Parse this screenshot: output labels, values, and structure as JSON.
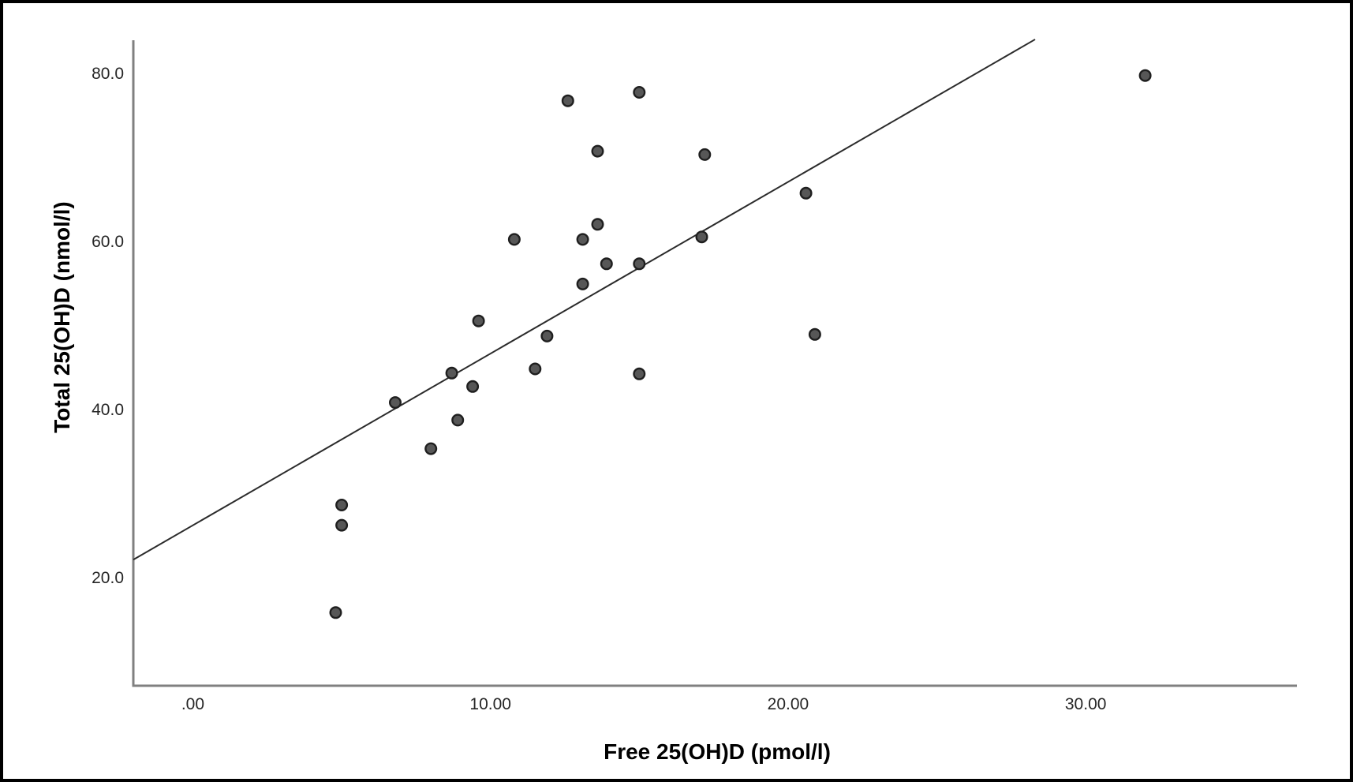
{
  "figure": {
    "background_color": "#ffffff",
    "border_color": "#000000"
  },
  "chart_data": {
    "type": "scatter",
    "title": "",
    "xlabel": "Free 25(OH)D (pmol/l)",
    "ylabel": "Total 25(OH)D (nmol/l)",
    "xlim": [
      -2.0,
      37.1
    ],
    "ylim": [
      7.2,
      84.0
    ],
    "grid": false,
    "legend": false,
    "x_ticks": [
      {
        "value": 0,
        "label": ".00"
      },
      {
        "value": 10,
        "label": "10.00"
      },
      {
        "value": 20,
        "label": "20.00"
      },
      {
        "value": 30,
        "label": "30.00"
      }
    ],
    "y_ticks": [
      {
        "value": 20,
        "label": "20.0"
      },
      {
        "value": 40,
        "label": "40.0"
      },
      {
        "value": 60,
        "label": "60.0"
      },
      {
        "value": 80,
        "label": "80.0"
      }
    ],
    "points": [
      [
        4.8,
        15.9
      ],
      [
        5.0,
        26.3
      ],
      [
        5.0,
        28.7
      ],
      [
        6.8,
        40.9
      ],
      [
        8.0,
        35.4
      ],
      [
        8.7,
        44.4
      ],
      [
        8.9,
        38.8
      ],
      [
        9.4,
        42.8
      ],
      [
        9.6,
        50.6
      ],
      [
        10.8,
        60.3
      ],
      [
        11.5,
        44.9
      ],
      [
        11.9,
        48.8
      ],
      [
        12.6,
        76.8
      ],
      [
        13.1,
        55.0
      ],
      [
        13.1,
        60.3
      ],
      [
        13.6,
        62.1
      ],
      [
        13.6,
        70.8
      ],
      [
        13.9,
        57.4
      ],
      [
        15.0,
        44.3
      ],
      [
        15.0,
        57.4
      ],
      [
        15.0,
        77.8
      ],
      [
        17.1,
        60.6
      ],
      [
        17.2,
        70.4
      ],
      [
        20.6,
        65.8
      ],
      [
        20.9,
        49.0
      ],
      [
        32.0,
        79.8
      ]
    ],
    "trend_line": {
      "x1": -2.0,
      "y1": 22.2,
      "x2": 28.3,
      "y2": 84.1
    },
    "point_style": {
      "fill": "#575757",
      "stroke": "#1f1f1f",
      "radius_px": 6.8,
      "stroke_width_px": 2.4
    },
    "trend_line_color": "#2b2b2b",
    "axis_line_color": "#808080"
  }
}
